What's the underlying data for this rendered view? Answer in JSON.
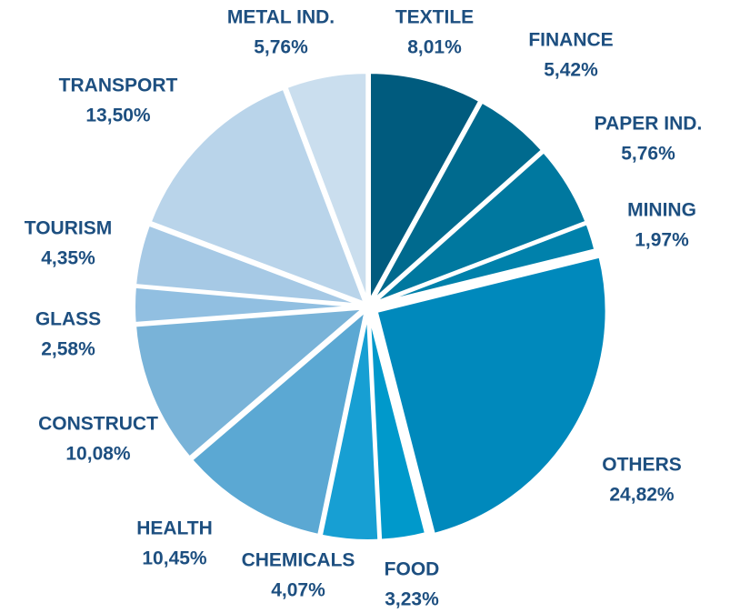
{
  "chart_data": {
    "type": "pie",
    "categories": [
      "TEXTILE",
      "FINANCE",
      "PAPER IND.",
      "MINING",
      "OTHERS",
      "FOOD",
      "CHEMICALS",
      "HEALTH",
      "CONSTRUCT",
      "GLASS",
      "TOURISM",
      "TRANSPORT",
      "METAL IND."
    ],
    "values": [
      8.01,
      5.42,
      5.76,
      1.97,
      24.82,
      3.23,
      4.07,
      10.45,
      10.08,
      2.58,
      4.35,
      13.5,
      5.76
    ],
    "value_labels": [
      "8,01%",
      "5,42%",
      "5,76%",
      "1,97%",
      "24,82%",
      "3,23%",
      "4,07%",
      "10,45%",
      "10,08%",
      "2,58%",
      "4,35%",
      "13,50%",
      "5,76%"
    ],
    "colors": [
      "#005b7e",
      "#006a8e",
      "#00789f",
      "#0081ab",
      "#0089bc",
      "#0099cb",
      "#179fd3",
      "#5ba8d3",
      "#79b3d8",
      "#91bfe1",
      "#a6c9e5",
      "#b9d4ea",
      "#cadeee"
    ]
  }
}
